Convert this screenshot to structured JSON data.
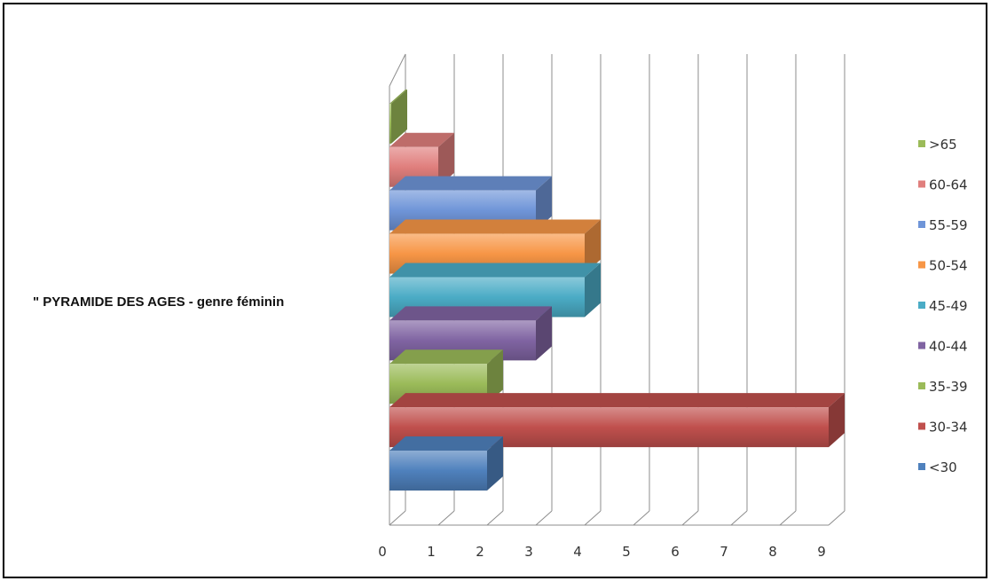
{
  "chart_data": {
    "type": "bar",
    "orientation": "horizontal",
    "style": "3d-clustered",
    "ylabel": "\" PYRAMIDE DES AGES - genre féminin",
    "xlabel": "",
    "xlim": [
      0,
      9
    ],
    "x_ticks": [
      "0",
      "1",
      "2",
      "3",
      "4",
      "5",
      "6",
      "7",
      "8",
      "9"
    ],
    "grid": true,
    "legend_position": "right",
    "series": [
      {
        "name": "<30",
        "value": 2,
        "color": "#4f81bd"
      },
      {
        "name": "30-34",
        "value": 9,
        "color": "#c0504d"
      },
      {
        "name": "35-39",
        "value": 2,
        "color": "#9bbb59"
      },
      {
        "name": "40-44",
        "value": 3,
        "color": "#8064a2"
      },
      {
        "name": "45-49",
        "value": 4,
        "color": "#4bacc6"
      },
      {
        "name": "50-54",
        "value": 4,
        "color": "#f79646"
      },
      {
        "name": "55-59",
        "value": 3,
        "color": "#6f95d8"
      },
      {
        "name": "60-64",
        "value": 1,
        "color": "#e07f7d"
      },
      {
        "name": ">65",
        "value": 0,
        "color": "#9bbb59"
      }
    ]
  }
}
